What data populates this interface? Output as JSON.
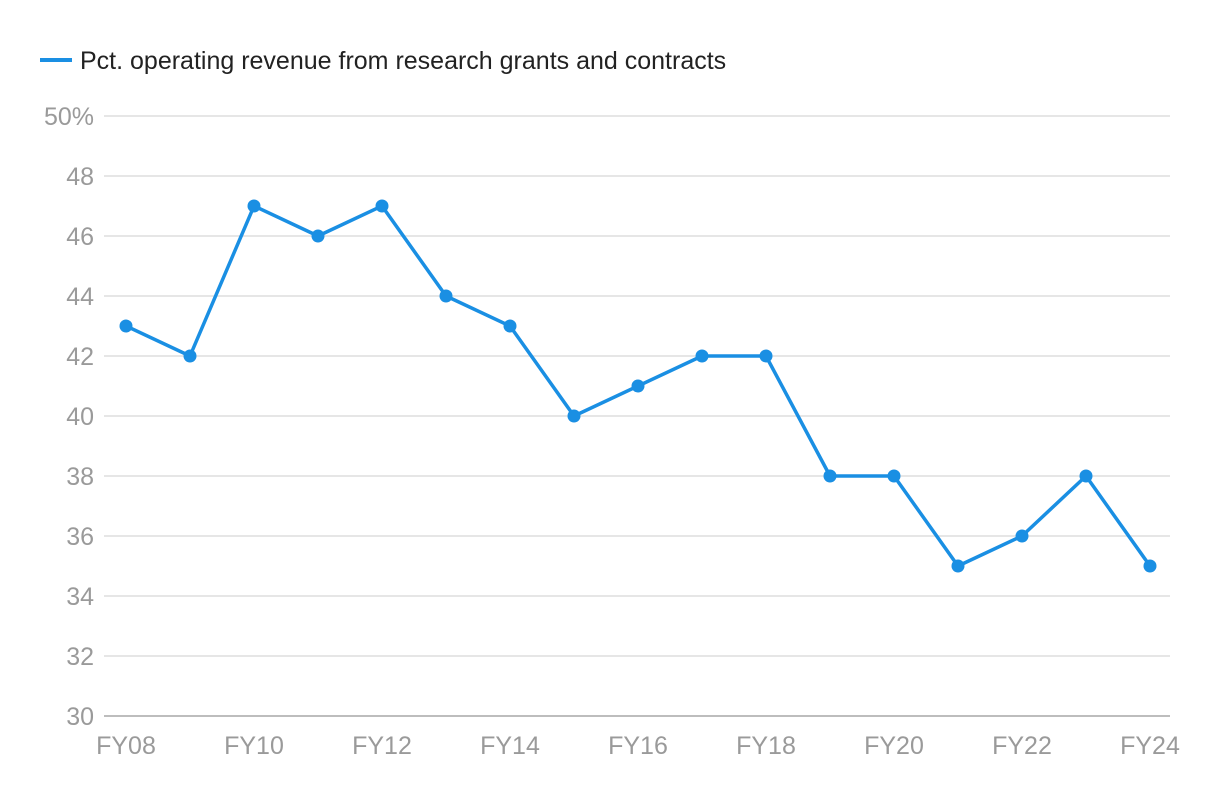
{
  "chart_data": {
    "type": "line",
    "title": "",
    "xlabel": "",
    "ylabel": "",
    "ylim": [
      30,
      50
    ],
    "y_ticks": [
      30,
      32,
      34,
      36,
      38,
      40,
      42,
      44,
      46,
      48,
      50
    ],
    "y_tick_labels": [
      "30",
      "32",
      "34",
      "36",
      "38",
      "40",
      "42",
      "44",
      "46",
      "48",
      "50%"
    ],
    "x": [
      "FY08",
      "FY09",
      "FY10",
      "FY11",
      "FY12",
      "FY13",
      "FY14",
      "FY15",
      "FY16",
      "FY17",
      "FY18",
      "FY19",
      "FY20",
      "FY21",
      "FY22",
      "FY23",
      "FY24"
    ],
    "x_tick_labels": [
      "FY08",
      "FY10",
      "FY12",
      "FY14",
      "FY16",
      "FY18",
      "FY20",
      "FY22",
      "FY24"
    ],
    "grid": true,
    "legend_position": "top-left",
    "series": [
      {
        "name": "Pct. operating revenue from research grants and contracts",
        "color": "#1a8fe3",
        "values": [
          43,
          42,
          47,
          46,
          47,
          44,
          43,
          40,
          41,
          42,
          42,
          38,
          38,
          35,
          36,
          38,
          35
        ]
      }
    ]
  }
}
